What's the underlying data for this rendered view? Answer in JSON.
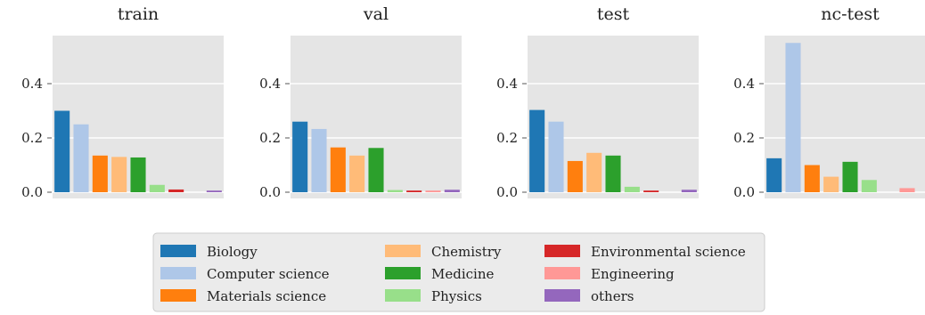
{
  "chart_data": {
    "type": "bar",
    "ylim": [
      0,
      0.57
    ],
    "yticks": [
      0.0,
      0.2,
      0.4
    ],
    "grid": true,
    "legend_position": "bottom-center",
    "categories": [
      "Biology",
      "Computer science",
      "Materials science",
      "Chemistry",
      "Medicine",
      "Physics",
      "Environmental science",
      "Engineering",
      "others"
    ],
    "colors": [
      "#1f77b4",
      "#aec7e8",
      "#ff7f0e",
      "#ffbb78",
      "#2ca02c",
      "#98df8a",
      "#d62728",
      "#ff9896",
      "#9467bd"
    ],
    "panels": [
      {
        "title": "train",
        "values": [
          0.3,
          0.25,
          0.135,
          0.13,
          0.128,
          0.027,
          0.01,
          0.0,
          0.006
        ]
      },
      {
        "title": "val",
        "values": [
          0.26,
          0.233,
          0.165,
          0.135,
          0.163,
          0.008,
          0.006,
          0.006,
          0.009
        ]
      },
      {
        "title": "test",
        "values": [
          0.303,
          0.26,
          0.115,
          0.145,
          0.135,
          0.02,
          0.006,
          0.0,
          0.009
        ]
      },
      {
        "title": "nc-test",
        "values": [
          0.125,
          0.55,
          0.1,
          0.057,
          0.112,
          0.045,
          0.0,
          0.015,
          0.0
        ]
      }
    ],
    "legend": {
      "columns": [
        [
          "Biology",
          "Computer science",
          "Materials science"
        ],
        [
          "Chemistry",
          "Medicine",
          "Physics"
        ],
        [
          "Environmental science",
          "Engineering",
          "others"
        ]
      ]
    }
  }
}
